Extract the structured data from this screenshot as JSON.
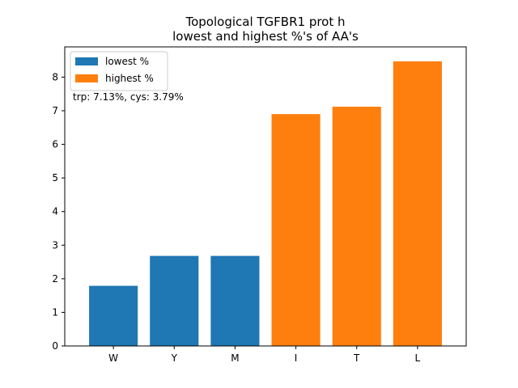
{
  "chart_data": {
    "type": "bar",
    "title_line1": "Topological TGFBR1 prot h",
    "title_line2": "lowest and highest %'s of AA's",
    "xlabel": "",
    "ylabel": "",
    "categories": [
      "W",
      "Y",
      "M",
      "I",
      "T",
      "L"
    ],
    "series": [
      {
        "name": "lowest %",
        "color": "#1f77b4",
        "values": [
          1.79,
          2.68,
          2.68,
          null,
          null,
          null
        ]
      },
      {
        "name": "highest %",
        "color": "#ff7f0e",
        "values": [
          null,
          null,
          null,
          6.9,
          7.12,
          8.47
        ]
      }
    ],
    "ylim": [
      0,
      8.9
    ],
    "yticks": [
      0,
      1,
      2,
      3,
      4,
      5,
      6,
      7,
      8
    ],
    "annotation": "trp: 7.13%, cys: 3.79%",
    "legend_position": "upper-left",
    "grid": false
  }
}
